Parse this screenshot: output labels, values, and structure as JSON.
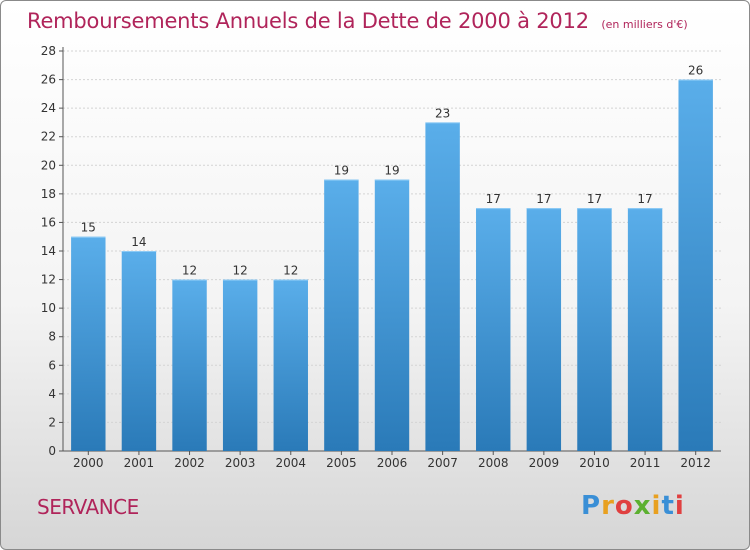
{
  "header": {
    "title": "Remboursements Annuels de la Dette de 2000 à 2012",
    "unit": "(en milliers d'€)"
  },
  "footer": {
    "place": "SERVANCE",
    "logo_text": "Proxiti"
  },
  "colors": {
    "title": "#b0245a",
    "bar_top": "#5aaeea",
    "bar_bottom": "#2a7ab8",
    "grid": "#d0d0d0"
  },
  "chart_data": {
    "type": "bar",
    "title": "Remboursements Annuels de la Dette de 2000 à 2012",
    "xlabel": "",
    "ylabel": "",
    "categories": [
      "2000",
      "2001",
      "2002",
      "2003",
      "2004",
      "2005",
      "2006",
      "2007",
      "2008",
      "2009",
      "2010",
      "2011",
      "2012"
    ],
    "values": [
      15,
      14,
      12,
      12,
      12,
      19,
      19,
      23,
      17,
      17,
      17,
      17,
      26
    ],
    "ylim": [
      0,
      28
    ],
    "yticks": [
      0,
      2,
      4,
      6,
      8,
      10,
      12,
      14,
      16,
      18,
      20,
      22,
      24,
      26,
      28
    ],
    "grid": true,
    "data_labels": true
  }
}
